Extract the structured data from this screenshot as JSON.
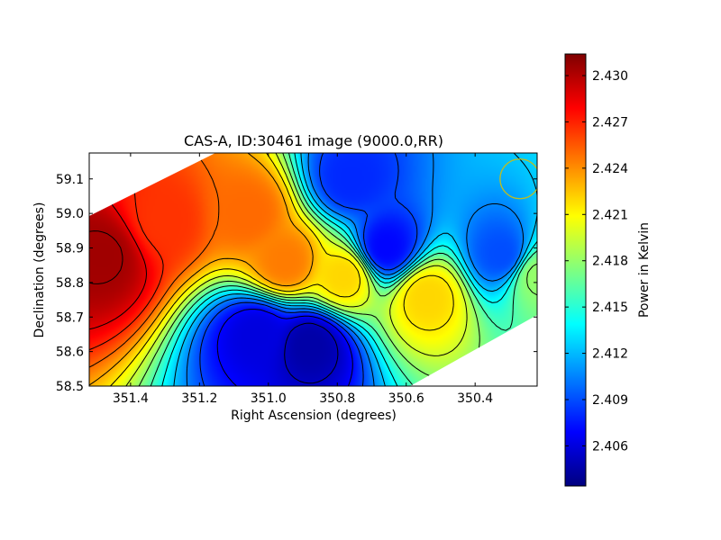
{
  "chart_data": {
    "type": "heatmap",
    "title": "CAS-A, ID:30461 image (9000.0,RR)",
    "xlabel": "Right Ascension (degrees)",
    "ylabel": "Declination (degrees)",
    "xlim": [
      351.52,
      350.22
    ],
    "ylim": [
      58.5,
      59.175
    ],
    "x_ticks": [
      "351.4",
      "351.2",
      "351.0",
      "350.8",
      "350.6",
      "350.4"
    ],
    "x_tick_values": [
      351.4,
      351.2,
      351.0,
      350.8,
      350.6,
      350.4
    ],
    "y_ticks": [
      "59.1",
      "59.0",
      "58.9",
      "58.8",
      "58.7",
      "58.6",
      "58.5"
    ],
    "y_tick_values": [
      59.1,
      59.0,
      58.9,
      58.8,
      58.7,
      58.6,
      58.5
    ],
    "colorbar": {
      "label": "Power in Kelvin",
      "ticks": [
        "2.430",
        "2.427",
        "2.424",
        "2.421",
        "2.418",
        "2.415",
        "2.412",
        "2.409",
        "2.406"
      ],
      "tick_values": [
        2.43,
        2.427,
        2.424,
        2.421,
        2.418,
        2.415,
        2.412,
        2.409,
        2.406
      ],
      "range": [
        2.4034,
        2.4314
      ],
      "colormap": "jet"
    },
    "features": [
      {
        "ra": 351.48,
        "dec": 58.88,
        "value": 2.4305
      },
      {
        "ra": 351.3,
        "dec": 58.98,
        "value": 2.4265
      },
      {
        "ra": 351.06,
        "dec": 59.0,
        "value": 2.425
      },
      {
        "ra": 350.95,
        "dec": 58.86,
        "value": 2.4245
      },
      {
        "ra": 350.88,
        "dec": 58.62,
        "value": 2.4045
      },
      {
        "ra": 351.03,
        "dec": 58.65,
        "value": 2.406
      },
      {
        "ra": 350.66,
        "dec": 58.9,
        "value": 2.407
      },
      {
        "ra": 350.78,
        "dec": 58.82,
        "value": 2.422
      },
      {
        "ra": 350.54,
        "dec": 58.76,
        "value": 2.422
      },
      {
        "ra": 350.76,
        "dec": 59.1,
        "value": 2.408
      },
      {
        "ra": 350.32,
        "dec": 58.88,
        "value": 2.409
      },
      {
        "ra": 350.22,
        "dec": 58.82,
        "value": 2.418
      }
    ],
    "beam_marker": {
      "ra": 350.27,
      "dec": 59.1,
      "color": "#bcbd22"
    }
  }
}
